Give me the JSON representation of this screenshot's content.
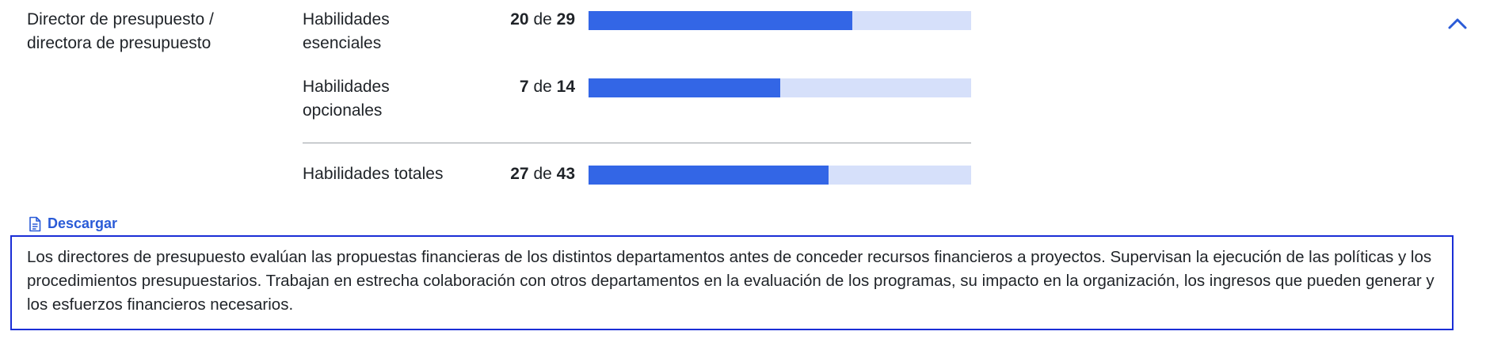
{
  "occupation": {
    "title": "Director de presupuesto / directora de presupuesto"
  },
  "skills": {
    "of_word": "de",
    "rows": [
      {
        "label": "Habilidades esenciales",
        "matched": "20",
        "total": "29",
        "fraction": 0.69
      },
      {
        "label": "Habilidades opcionales",
        "matched": "7",
        "total": "14",
        "fraction": 0.5
      }
    ],
    "summary": {
      "label": "Habilidades totales",
      "matched": "27",
      "total": "43",
      "fraction": 0.628
    }
  },
  "download": {
    "label": "Descargar",
    "icon": "document-icon"
  },
  "collapse": {
    "icon": "chevron-up-icon"
  },
  "description": {
    "text": "Los directores de presupuesto evalúan las propuestas financieras de los distintos departamentos antes de conceder recursos financieros a proyectos. Supervisan la ejecución de las políticas y los procedimientos presupuestarios. Trabajan en estrecha colaboración con otros departamentos en la evaluación de los programas, su impacto en la organización, los ingresos que pueden generar y los esfuerzos financieros necesarios."
  },
  "colors": {
    "bar_fill": "#3366e6",
    "bar_track": "#d6e0fa",
    "accent": "#2a5bd7",
    "focus_border": "#1a2ed6"
  }
}
